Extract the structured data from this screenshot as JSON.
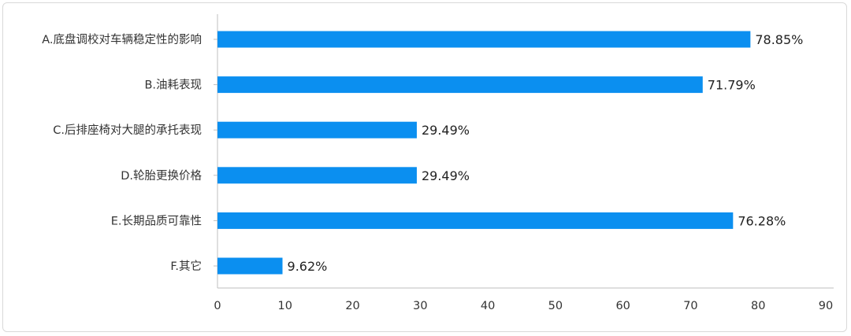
{
  "chart_data": {
    "type": "bar",
    "orientation": "horizontal",
    "categories": [
      "A.底盘调校对车辆稳定性的影响",
      "B.油耗表现",
      "C.后排座椅对大腿的承托表现",
      "D.轮胎更换价格",
      "E.长期品质可靠性",
      "F.其它"
    ],
    "values": [
      78.85,
      71.79,
      29.49,
      29.49,
      76.28,
      9.62
    ],
    "value_labels": [
      "78.85%",
      "71.79%",
      "29.49%",
      "29.49%",
      "76.28%",
      "9.62%"
    ],
    "xlim": [
      0,
      90
    ],
    "xticks": [
      0,
      10,
      20,
      30,
      40,
      50,
      60,
      70,
      80,
      90
    ],
    "xtick_labels": [
      "0",
      "10",
      "20",
      "30",
      "40",
      "50",
      "60",
      "70",
      "80",
      "90"
    ],
    "bar_color": "#0b8ff0",
    "grid": false,
    "title": "",
    "xlabel": "",
    "ylabel": ""
  }
}
